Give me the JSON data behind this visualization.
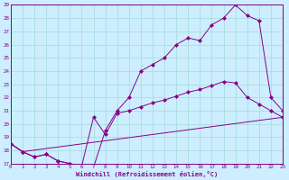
{
  "xlabel": "Windchill (Refroidissement éolien,°C)",
  "bg_color": "#cceeff",
  "line_color": "#880088",
  "grid_color": "#aadddd",
  "xmin": 0,
  "xmax": 23,
  "ymin": 17,
  "ymax": 29,
  "line1_x": [
    0,
    1,
    2,
    3,
    4,
    5,
    6,
    7,
    8,
    9,
    10,
    11,
    12,
    13,
    14,
    15,
    16,
    17,
    18,
    19,
    20,
    21,
    22,
    23
  ],
  "line1_y": [
    18.5,
    17.9,
    17.5,
    17.7,
    17.2,
    17.0,
    16.8,
    16.7,
    19.5,
    21.0,
    22.0,
    24.0,
    24.5,
    25.0,
    26.0,
    26.5,
    26.3,
    27.5,
    28.0,
    29.0,
    28.2,
    27.8,
    22.0,
    21.0
  ],
  "line2_x": [
    0,
    1,
    2,
    3,
    4,
    5,
    6,
    7,
    8,
    9,
    10,
    11,
    12,
    13,
    14,
    15,
    16,
    17,
    18,
    19,
    20,
    21,
    22,
    23
  ],
  "line2_y": [
    18.5,
    17.9,
    17.5,
    17.7,
    17.2,
    17.0,
    16.8,
    20.5,
    19.2,
    20.8,
    21.0,
    21.3,
    21.6,
    21.8,
    22.1,
    22.4,
    22.6,
    22.9,
    23.2,
    23.1,
    22.0,
    21.5,
    21.0,
    20.5
  ],
  "line3_x": [
    0,
    1,
    23
  ],
  "line3_y": [
    18.5,
    17.9,
    20.5
  ]
}
